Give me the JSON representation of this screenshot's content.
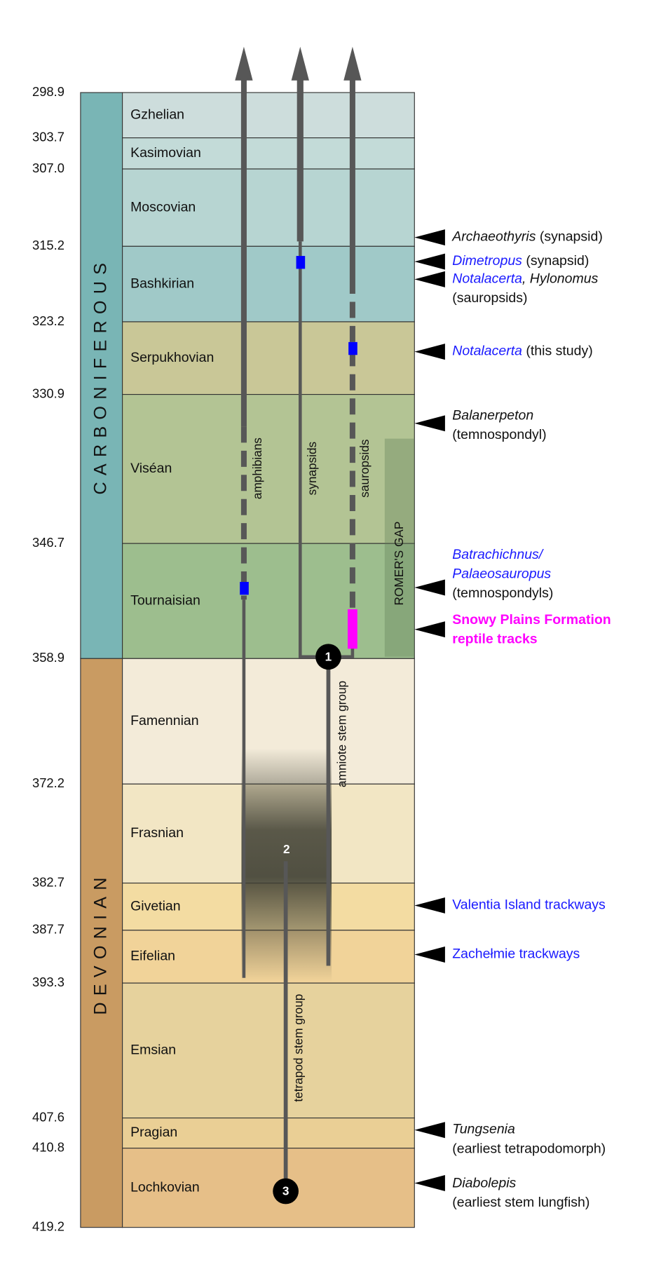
{
  "boundaries": [
    "298.9",
    "303.7",
    "307.0",
    "315.2",
    "323.2",
    "330.9",
    "346.7",
    "358.9",
    "372.2",
    "382.7",
    "387.7",
    "393.3",
    "407.6",
    "410.8",
    "419.2"
  ],
  "periods": [
    {
      "name": "CARBONIFEROUS",
      "color": "#79b5b5",
      "stages": [
        {
          "name": "Gzhelian",
          "color": "#cddddc"
        },
        {
          "name": "Kasimovian",
          "color": "#c3dbd8"
        },
        {
          "name": "Moscovian",
          "color": "#b7d5d2"
        },
        {
          "name": "Bashkirian",
          "color": "#a0c9c8"
        },
        {
          "name": "Serpukhovian",
          "color": "#c9c797"
        },
        {
          "name": "Viséan",
          "color": "#b3c494"
        },
        {
          "name": "Tournaisian",
          "color": "#9dbe8e"
        }
      ]
    },
    {
      "name": "DEVONIAN",
      "color": "#c99b62",
      "stages": [
        {
          "name": "Famennian",
          "color": "#f3ebd9"
        },
        {
          "name": "Frasnian",
          "color": "#f2e6c4"
        },
        {
          "name": "Givetian",
          "color": "#f3dca2"
        },
        {
          "name": "Eifelian",
          "color": "#f1d399"
        },
        {
          "name": "Emsian",
          "color": "#e6d29d"
        },
        {
          "name": "Pragian",
          "color": "#eacf95"
        },
        {
          "name": "Lochkovian",
          "color": "#e6bf88"
        }
      ]
    }
  ],
  "lineages": {
    "amphibians": "amphibians",
    "synapsids": "synapsids",
    "sauropsids": "sauropsids",
    "amniote": "amniote stem group",
    "tetrapod": "tetrapod stem group",
    "gap": "ROMER'S GAP"
  },
  "nodes": [
    "1",
    "2",
    "3"
  ],
  "annotations": [
    {
      "lines": [
        [
          {
            "text": "Archaeothyris",
            "italic": true
          },
          {
            "text": " (synapsid)"
          }
        ]
      ]
    },
    {
      "lines": [
        [
          {
            "text": "Dimetropus",
            "italic": true,
            "color": "#1a1aff"
          },
          {
            "text": " (synapsid)"
          }
        ]
      ]
    },
    {
      "lines": [
        [
          {
            "text": "Notalacerta",
            "italic": true,
            "color": "#1a1aff"
          },
          {
            "text": ", Hylonomus",
            "italic": true
          }
        ],
        [
          {
            "text": "(sauropsids)"
          }
        ]
      ]
    },
    {
      "lines": [
        [
          {
            "text": "Notalacerta",
            "italic": true,
            "color": "#1a1aff"
          },
          {
            "text": " (this study)"
          }
        ]
      ]
    },
    {
      "lines": [
        [
          {
            "text": "Balanerpeton",
            "italic": true
          }
        ],
        [
          {
            "text": "(temnospondyl)"
          }
        ]
      ]
    },
    {
      "lines": [
        [
          {
            "text": "Batrachichnus/",
            "italic": true,
            "color": "#1a1aff"
          }
        ],
        [
          {
            "text": "Palaeosauropus",
            "italic": true,
            "color": "#1a1aff"
          }
        ],
        [
          {
            "text": "(temnospondyls)"
          }
        ]
      ]
    },
    {
      "lines": [
        [
          {
            "text": "Snowy Plains Formation",
            "bold": true,
            "color": "#ff00ff"
          }
        ],
        [
          {
            "text": "reptile tracks",
            "bold": true,
            "color": "#ff00ff"
          }
        ]
      ]
    },
    {
      "lines": [
        [
          {
            "text": "Valentia Island trackways",
            "color": "#1a1aff"
          }
        ]
      ]
    },
    {
      "lines": [
        [
          {
            "text": "Zachełmie trackways",
            "color": "#1a1aff"
          }
        ]
      ]
    },
    {
      "lines": [
        [
          {
            "text": "Tungsenia",
            "italic": true
          }
        ],
        [
          {
            "text": "(earliest tetrapodomorph)"
          }
        ]
      ]
    },
    {
      "lines": [
        [
          {
            "text": "Diabolepis",
            "italic": true
          }
        ],
        [
          {
            "text": "(earliest stem lungfish)"
          }
        ]
      ]
    }
  ]
}
